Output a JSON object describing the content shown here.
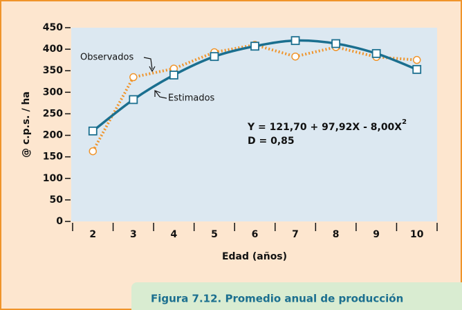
{
  "chart_data": {
    "type": "line",
    "y_label": "@ c.p.s. / ha",
    "x_label": "Edad (años)",
    "categories": [
      "2",
      "3",
      "4",
      "5",
      "6",
      "7",
      "8",
      "9",
      "10"
    ],
    "series": [
      {
        "name": "Estimados",
        "color": "#1b6f8f",
        "marker": "square",
        "smooth": true,
        "values": [
          210,
          283,
          340,
          383,
          407,
          420,
          413,
          390,
          353
        ]
      },
      {
        "name": "Observados",
        "color": "#f0942a",
        "marker": "circle",
        "smooth": false,
        "values": [
          163,
          335,
          355,
          393,
          410,
          383,
          405,
          382,
          375
        ]
      }
    ],
    "ylim": [
      0,
      450
    ],
    "yticks": [
      0,
      50,
      100,
      150,
      200,
      250,
      300,
      350,
      400,
      450
    ],
    "grid": false,
    "equation": "Y = 121,70 + 97,92X - 8,00X",
    "equation_exponent": "2",
    "fit_note": "D = 0,85",
    "caption": "Figura 7.12. Promedio anual de producción"
  }
}
